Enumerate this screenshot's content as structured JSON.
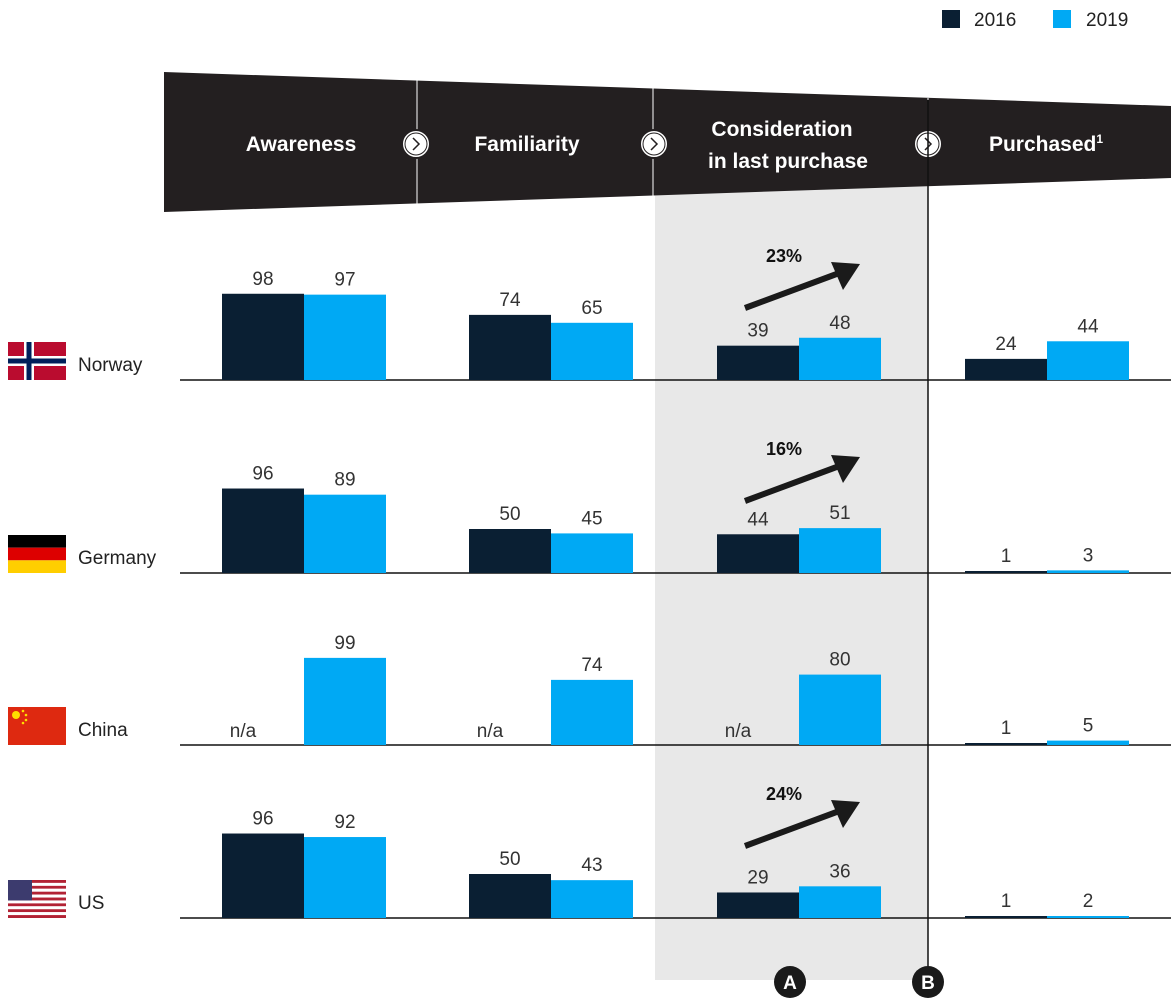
{
  "chart_data": {
    "type": "bar",
    "legend": {
      "position": "top-right",
      "entries": [
        {
          "label": "2016",
          "color": "#0a1f33"
        },
        {
          "label": "2019",
          "color": "#00a9f4"
        }
      ]
    },
    "stages": [
      {
        "label_lines": [
          "Awareness"
        ]
      },
      {
        "label_lines": [
          "Familiarity"
        ]
      },
      {
        "label_lines": [
          "Consideration",
          "in last purchase"
        ]
      },
      {
        "label_lines": [
          "Purchased"
        ],
        "footnote": "1"
      }
    ],
    "na_label": "n/a",
    "countries": [
      {
        "name": "Norway",
        "flag": "norway-flag-icon",
        "values_2016": [
          98,
          74,
          39,
          24
        ],
        "values_2019": [
          97,
          65,
          48,
          44
        ],
        "growth": "23%"
      },
      {
        "name": "Germany",
        "flag": "germany-flag-icon",
        "values_2016": [
          96,
          50,
          44,
          1
        ],
        "values_2019": [
          89,
          45,
          51,
          3
        ],
        "growth": "16%"
      },
      {
        "name": "China",
        "flag": "china-flag-icon",
        "values_2016": [
          null,
          null,
          null,
          1
        ],
        "values_2019": [
          99,
          74,
          80,
          5
        ],
        "growth": null
      },
      {
        "name": "US",
        "flag": "us-flag-icon",
        "values_2016": [
          96,
          50,
          29,
          1
        ],
        "values_2019": [
          92,
          43,
          36,
          2
        ],
        "growth": "24%"
      }
    ],
    "markers": [
      "A",
      "B"
    ],
    "colors": {
      "dark": "#0a1f33",
      "light": "#00a9f4",
      "highlight": "#e8e8e8",
      "funnel": "#231f20"
    }
  }
}
